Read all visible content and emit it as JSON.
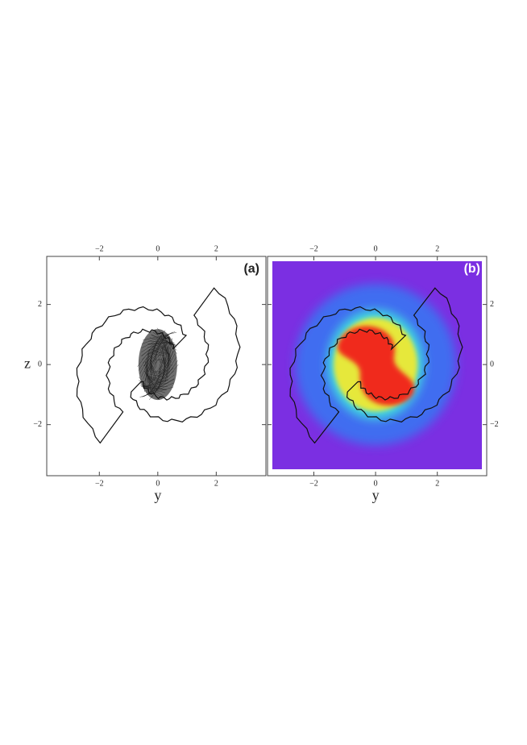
{
  "chart_data": [
    {
      "type": "image",
      "title": "(a)",
      "xlabel": "y",
      "ylabel": "z",
      "y_tick_side": "left",
      "background": "#ffffff",
      "title_color": "#222222",
      "xlim": [
        -3.8,
        3.7
      ],
      "ylim": [
        -3.7,
        3.6
      ],
      "xticks": [
        {
          "value": -2,
          "label": "−2"
        },
        0,
        2
      ],
      "yticks": [
        {
          "value": -2,
          "label": "−2"
        },
        0,
        2
      ]
    },
    {
      "type": "heatmap",
      "title": "(b)",
      "xlabel": "y",
      "y_tick_side": "right",
      "background": "#7b2fe2",
      "title_color": "#ffffff",
      "xlim": [
        -3.5,
        3.6
      ],
      "ylim": [
        -3.7,
        3.6
      ],
      "xticks": [
        {
          "value": -2,
          "label": "−2"
        },
        0,
        2
      ],
      "yticks": [
        {
          "value": -2,
          "label": "−2"
        },
        0,
        2
      ]
    }
  ]
}
